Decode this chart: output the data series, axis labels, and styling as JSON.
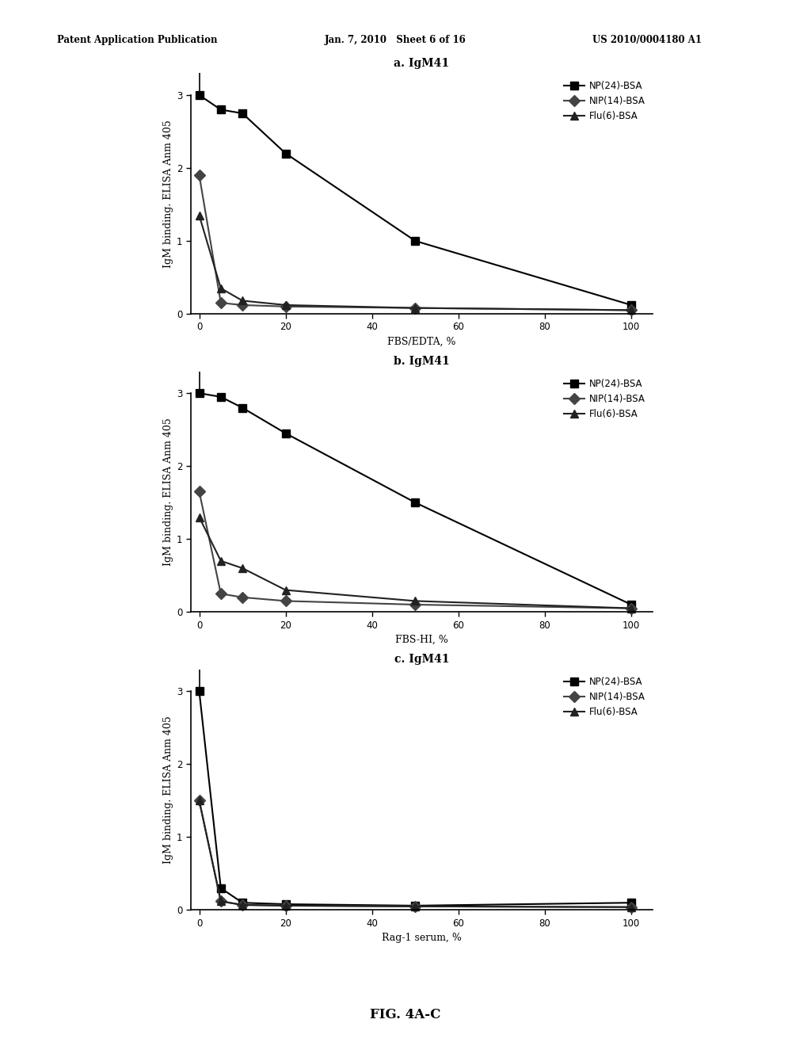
{
  "header_left": "Patent Application Publication",
  "header_mid": "Jan. 7, 2010   Sheet 6 of 16",
  "header_right": "US 2010/0004180 A1",
  "footer": "FIG. 4A-C",
  "panels": [
    {
      "title": "a. IgM41",
      "xlabel": "FBS/EDTA, %",
      "ylabel": "IgM binding. ELISA Anm 405",
      "xlim": [
        -2,
        105
      ],
      "ylim": [
        0,
        3.3
      ],
      "yticks": [
        0,
        1,
        2,
        3
      ],
      "xticks": [
        0,
        20,
        40,
        60,
        80,
        100
      ],
      "series": [
        {
          "label": "NP(24)-BSA",
          "x": [
            0,
            5,
            10,
            20,
            50,
            100
          ],
          "y": [
            3.0,
            2.8,
            2.75,
            2.2,
            1.0,
            0.12
          ],
          "marker": "s",
          "color": "#000000",
          "linewidth": 1.5
        },
        {
          "label": "NIP(14)-BSA",
          "x": [
            0,
            5,
            10,
            20,
            50,
            100
          ],
          "y": [
            1.9,
            0.15,
            0.12,
            0.1,
            0.08,
            0.05
          ],
          "marker": "D",
          "color": "#444444",
          "linewidth": 1.5
        },
        {
          "label": "Flu(6)-BSA",
          "x": [
            0,
            5,
            10,
            20,
            50,
            100
          ],
          "y": [
            1.35,
            0.35,
            0.18,
            0.12,
            0.08,
            0.05
          ],
          "marker": "^",
          "color": "#222222",
          "linewidth": 1.5
        }
      ]
    },
    {
      "title": "b. IgM41",
      "xlabel": "FBS-HI, %",
      "ylabel": "IgM binding. ELISA Anm 405",
      "xlim": [
        -2,
        105
      ],
      "ylim": [
        0,
        3.3
      ],
      "yticks": [
        0,
        1,
        2,
        3
      ],
      "xticks": [
        0,
        20,
        40,
        60,
        80,
        100
      ],
      "series": [
        {
          "label": "NP(24)-BSA",
          "x": [
            0,
            5,
            10,
            20,
            50,
            100
          ],
          "y": [
            3.0,
            2.95,
            2.8,
            2.45,
            1.5,
            0.1
          ],
          "marker": "s",
          "color": "#000000",
          "linewidth": 1.5
        },
        {
          "label": "NIP(14)-BSA",
          "x": [
            0,
            5,
            10,
            20,
            50,
            100
          ],
          "y": [
            1.65,
            0.25,
            0.2,
            0.15,
            0.1,
            0.05
          ],
          "marker": "D",
          "color": "#444444",
          "linewidth": 1.5
        },
        {
          "label": "Flu(6)-BSA",
          "x": [
            0,
            5,
            10,
            20,
            50,
            100
          ],
          "y": [
            1.3,
            0.7,
            0.6,
            0.3,
            0.15,
            0.05
          ],
          "marker": "^",
          "color": "#222222",
          "linewidth": 1.5
        }
      ]
    },
    {
      "title": "c. IgM41",
      "xlabel": "Rag-1 serum, %",
      "ylabel": "IgM binding. ELISA Anm 405",
      "xlim": [
        -2,
        105
      ],
      "ylim": [
        0,
        3.3
      ],
      "yticks": [
        0,
        1,
        2,
        3
      ],
      "xticks": [
        0,
        20,
        40,
        60,
        80,
        100
      ],
      "series": [
        {
          "label": "NP(24)-BSA",
          "x": [
            0,
            5,
            10,
            20,
            50,
            100
          ],
          "y": [
            3.0,
            0.3,
            0.1,
            0.08,
            0.06,
            0.1
          ],
          "marker": "s",
          "color": "#000000",
          "linewidth": 1.5
        },
        {
          "label": "NIP(14)-BSA",
          "x": [
            0,
            5,
            10,
            20,
            50,
            100
          ],
          "y": [
            1.5,
            0.12,
            0.07,
            0.06,
            0.05,
            0.04
          ],
          "marker": "D",
          "color": "#444444",
          "linewidth": 1.5
        },
        {
          "label": "Flu(6)-BSA",
          "x": [
            0,
            5,
            10,
            20,
            50,
            100
          ],
          "y": [
            1.5,
            0.12,
            0.07,
            0.06,
            0.05,
            0.04
          ],
          "marker": "^",
          "color": "#222222",
          "linewidth": 1.5
        }
      ]
    }
  ],
  "background_color": "#ffffff",
  "legend_loc": "upper right",
  "legend_fontsize": 8.5,
  "title_fontsize": 10,
  "axis_fontsize": 9,
  "tick_fontsize": 8.5,
  "marker_size": 7
}
